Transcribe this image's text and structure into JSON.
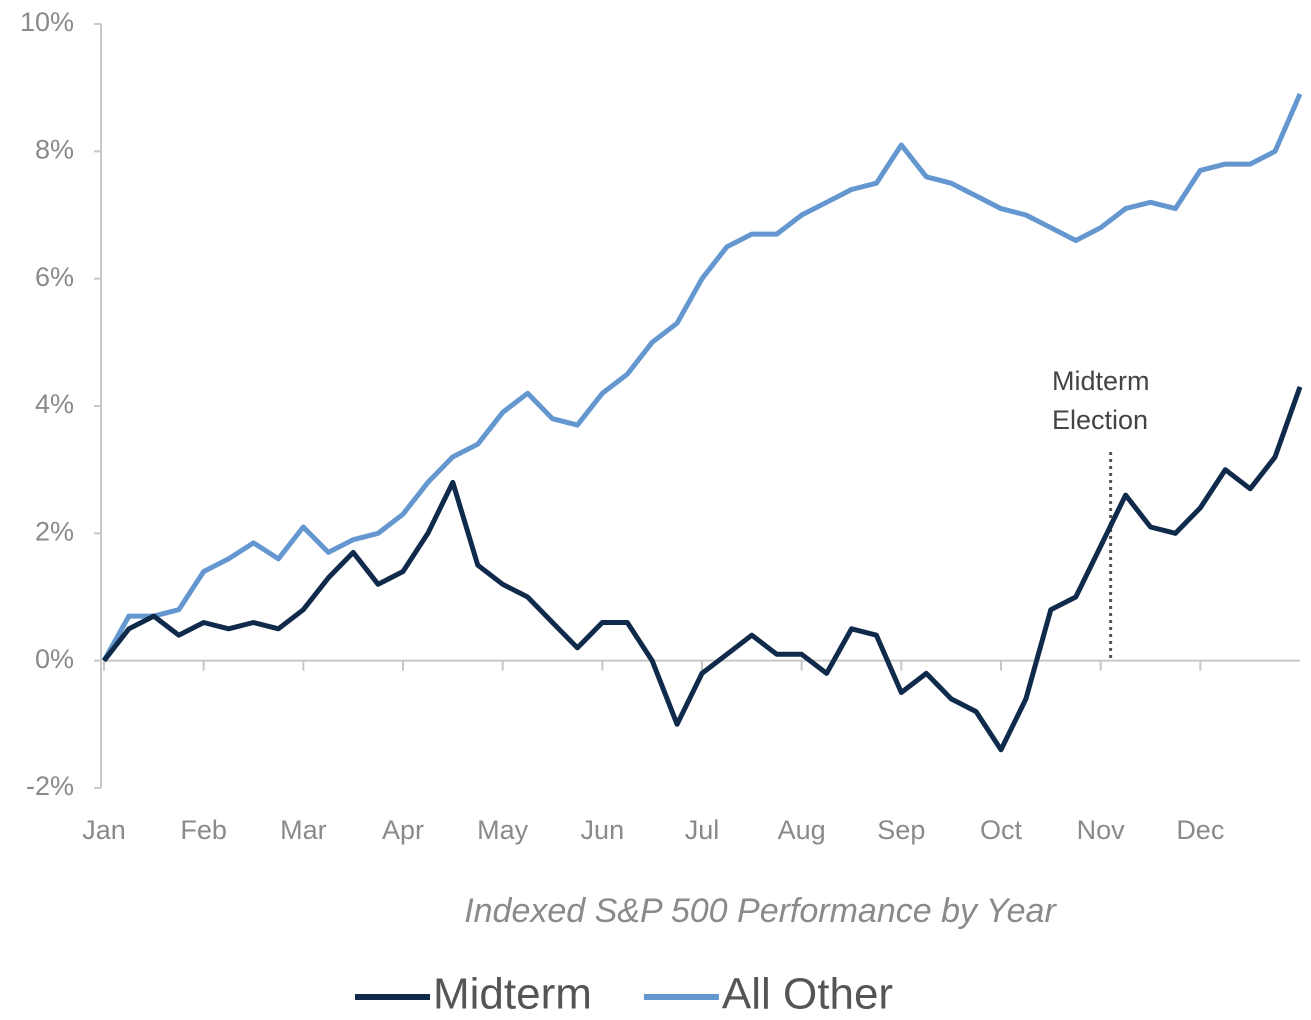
{
  "chart_data": {
    "type": "line",
    "subtitle": "Indexed S&P 500 Performance by Year",
    "x": [
      0,
      0.25,
      0.5,
      0.75,
      1,
      1.25,
      1.5,
      1.75,
      2,
      2.25,
      2.5,
      2.75,
      3,
      3.25,
      3.5,
      3.75,
      4,
      4.25,
      4.5,
      4.75,
      5,
      5.25,
      5.5,
      5.75,
      6,
      6.25,
      6.5,
      6.75,
      7,
      7.25,
      7.5,
      7.75,
      8,
      8.25,
      8.5,
      8.75,
      9,
      9.25,
      9.5,
      9.75,
      10,
      10.25,
      10.5,
      10.75,
      11,
      11.25,
      11.5,
      11.75,
      12
    ],
    "series": [
      {
        "name": "Midterm",
        "color": "#0f2a4a",
        "values": [
          0,
          0.5,
          0.7,
          0.4,
          0.6,
          0.5,
          0.6,
          0.5,
          0.8,
          1.3,
          1.7,
          1.2,
          1.4,
          2.0,
          2.8,
          1.5,
          1.2,
          1.0,
          0.6,
          0.2,
          0.6,
          0.6,
          0.0,
          -1.0,
          -0.2,
          0.1,
          0.4,
          0.1,
          0.1,
          -0.2,
          0.5,
          0.4,
          -0.5,
          -0.2,
          -0.6,
          -0.8,
          -1.4,
          -0.6,
          0.8,
          1.0,
          1.8,
          2.6,
          2.1,
          2.0,
          2.4,
          3.0,
          2.7,
          3.2,
          4.3
        ]
      },
      {
        "name": "All Other",
        "color": "#6497cf",
        "values": [
          0,
          0.7,
          0.7,
          0.8,
          1.4,
          1.6,
          1.85,
          1.6,
          2.1,
          1.7,
          1.9,
          2.0,
          2.3,
          2.8,
          3.2,
          3.4,
          3.9,
          4.2,
          3.8,
          3.7,
          4.2,
          4.5,
          5.0,
          5.3,
          6.0,
          6.5,
          6.7,
          6.7,
          7.0,
          7.2,
          7.4,
          7.5,
          8.1,
          7.6,
          7.5,
          7.3,
          7.1,
          7.0,
          6.8,
          6.6,
          6.8,
          7.1,
          7.2,
          7.1,
          7.7,
          7.8,
          7.8,
          8.0,
          8.9
        ]
      }
    ],
    "xlim": [
      0,
      12
    ],
    "xticks": [
      {
        "value": 0,
        "label": "Jan"
      },
      {
        "value": 1,
        "label": "Feb"
      },
      {
        "value": 2,
        "label": "Mar"
      },
      {
        "value": 3,
        "label": "Apr"
      },
      {
        "value": 4,
        "label": "May"
      },
      {
        "value": 5,
        "label": "Jun"
      },
      {
        "value": 6,
        "label": "Jul"
      },
      {
        "value": 7,
        "label": "Aug"
      },
      {
        "value": 8,
        "label": "Sep"
      },
      {
        "value": 9,
        "label": "Oct"
      },
      {
        "value": 10,
        "label": "Nov"
      },
      {
        "value": 11,
        "label": "Dec"
      }
    ],
    "ylim": [
      -2,
      10
    ],
    "yticks": [
      {
        "value": -2,
        "label": "-2%"
      },
      {
        "value": 0,
        "label": "0%"
      },
      {
        "value": 2,
        "label": "2%"
      },
      {
        "value": 4,
        "label": "4%"
      },
      {
        "value": 6,
        "label": "6%"
      },
      {
        "value": 8,
        "label": "8%"
      },
      {
        "value": 10,
        "label": "10%"
      }
    ],
    "annotation": {
      "lines": [
        "Midterm",
        "Election"
      ],
      "x": 10.1
    },
    "legend": "bottom"
  }
}
